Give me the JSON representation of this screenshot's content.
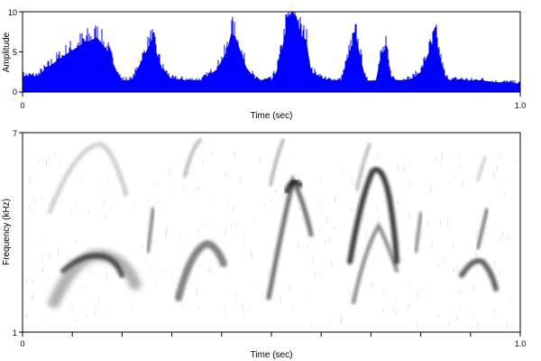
{
  "chart_data": [
    {
      "type": "area",
      "panel": "waveform",
      "xlabel": "Time (sec)",
      "ylabel": "Amplitude",
      "xlim": [
        0,
        1.0
      ],
      "ylim": [
        0,
        10
      ],
      "x_tick_labels": [
        "0",
        "1.0"
      ],
      "y_tick_labels": [
        "0",
        "5",
        "10"
      ],
      "grid": false,
      "fill_color": "#0000ff",
      "envelope": {
        "x": [
          0.0,
          0.03,
          0.06,
          0.09,
          0.12,
          0.15,
          0.17,
          0.19,
          0.2,
          0.22,
          0.24,
          0.26,
          0.28,
          0.3,
          0.33,
          0.36,
          0.39,
          0.41,
          0.42,
          0.43,
          0.45,
          0.47,
          0.49,
          0.5,
          0.51,
          0.52,
          0.53,
          0.54,
          0.55,
          0.56,
          0.57,
          0.58,
          0.61,
          0.64,
          0.66,
          0.67,
          0.68,
          0.69,
          0.7,
          0.71,
          0.72,
          0.73,
          0.74,
          0.75,
          0.76,
          0.78,
          0.8,
          0.82,
          0.83,
          0.84,
          0.85,
          0.86,
          0.87,
          0.88,
          0.9,
          0.92,
          0.94,
          0.96,
          0.98,
          1.0
        ],
        "y": [
          2.0,
          2.0,
          3.5,
          4.8,
          6.0,
          6.8,
          5.2,
          2.5,
          1.5,
          1.5,
          4.0,
          6.5,
          3.0,
          1.6,
          1.5,
          1.5,
          2.8,
          5.0,
          7.5,
          6.5,
          3.0,
          1.5,
          1.5,
          1.5,
          2.5,
          5.0,
          8.0,
          10.0,
          9.5,
          7.0,
          6.5,
          2.5,
          1.5,
          1.5,
          5.5,
          7.0,
          4.0,
          1.5,
          1.4,
          1.5,
          4.5,
          5.5,
          2.0,
          1.5,
          1.5,
          1.6,
          2.5,
          5.5,
          7.0,
          4.0,
          1.8,
          1.5,
          1.5,
          1.6,
          1.4,
          1.5,
          1.3,
          1.2,
          1.2,
          1.0
        ]
      }
    },
    {
      "type": "heatmap",
      "panel": "spectrogram",
      "xlabel": "Time (sec)",
      "ylabel": "Frequency (kHz)",
      "xlim": [
        0,
        1.0
      ],
      "ylim": [
        1,
        7
      ],
      "x_tick_labels": [
        "0",
        "1.0"
      ],
      "y_tick_labels": [
        "1",
        "7"
      ],
      "grid": false,
      "colormap": "white-to-black",
      "units": {
        "x": [
          0.04,
          0.16,
          0.28,
          0.4,
          0.5,
          0.61,
          0.72,
          0.86,
          0.94,
          0.98
        ],
        "syllables": [
          {
            "peak_frequency_khz": 3.0,
            "time_start": 0.06,
            "time_peak": 0.16,
            "time_end": 0.26,
            "harmonic_peak_khz": 6.1
          },
          {
            "peak_frequency_khz": 3.2,
            "time_start": 0.31,
            "time_peak": 0.37,
            "time_end": 0.43,
            "harmonic_peak_khz": 6.9
          },
          {
            "peak_frequency_khz": 4.8,
            "time_start": 0.5,
            "time_peak": 0.54,
            "time_end": 0.6,
            "harmonic_peak_khz": 6.9
          },
          {
            "peak_frequency_khz": 5.1,
            "time_start": 0.66,
            "time_peak": 0.71,
            "time_end": 0.77,
            "harmonic_peak_khz": 6.9
          },
          {
            "peak_frequency_khz": 2.9,
            "time_start": 0.88,
            "time_peak": 0.92,
            "time_end": 0.96,
            "harmonic_peak_khz": 5.3
          }
        ]
      }
    }
  ]
}
